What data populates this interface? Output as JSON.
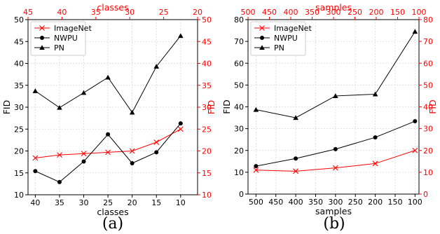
{
  "chart_data": [
    {
      "type": "line",
      "caption": "(a)",
      "xlabel": "classes",
      "ylabel": "FID",
      "top_xlabel": "classes",
      "right_ylabel": "FID",
      "xlim": [
        41.5,
        6.5
      ],
      "ylim": [
        10,
        50
      ],
      "xticks": [
        "40",
        "35",
        "30",
        "25",
        "20",
        "15",
        "10"
      ],
      "yticks": [
        "10",
        "15",
        "20",
        "25",
        "30",
        "35",
        "40",
        "45",
        "50"
      ],
      "top_xlim": [
        45,
        20
      ],
      "top_xticks": [
        "45",
        "40",
        "35",
        "30",
        "25",
        "20"
      ],
      "right_ylim": [
        10,
        50
      ],
      "right_yticks": [
        "10",
        "15",
        "20",
        "25",
        "30",
        "35",
        "40",
        "45",
        "50"
      ],
      "grid": true,
      "legend_position": "top-left",
      "series": [
        {
          "name": "ImageNet",
          "color": "#ff0000",
          "marker": "x",
          "x": [
            40,
            35,
            30,
            25,
            20,
            15,
            10
          ],
          "y": [
            18.4,
            19.1,
            19.4,
            19.7,
            20.0,
            22.0,
            25.0
          ]
        },
        {
          "name": "NWPU",
          "color": "#000000",
          "marker": "circle",
          "x": [
            40,
            35,
            30,
            25,
            20,
            15,
            10
          ],
          "y": [
            15.4,
            12.9,
            17.6,
            23.8,
            17.2,
            19.7,
            26.3
          ]
        },
        {
          "name": "PN",
          "color": "#000000",
          "marker": "triangle",
          "x": [
            40,
            35,
            30,
            25,
            20,
            15,
            10
          ],
          "y": [
            33.7,
            29.9,
            33.3,
            36.8,
            28.8,
            39.3,
            46.3
          ]
        }
      ]
    },
    {
      "type": "line",
      "caption": "(b)",
      "xlabel": "samples",
      "ylabel": "FID",
      "top_xlabel": "samples",
      "right_ylabel": "FID",
      "xlim": [
        520,
        90
      ],
      "ylim": [
        0,
        80
      ],
      "xticks": [
        "500",
        "450",
        "400",
        "350",
        "300",
        "250",
        "200",
        "150",
        "100"
      ],
      "yticks": [
        "0",
        "10",
        "20",
        "30",
        "40",
        "50",
        "60",
        "70",
        "80"
      ],
      "top_xlim": [
        500,
        100
      ],
      "top_xticks": [
        "500",
        "450",
        "400",
        "350",
        "300",
        "250",
        "200",
        "150",
        "100"
      ],
      "right_ylim": [
        0,
        80
      ],
      "right_yticks": [
        "0",
        "10",
        "20",
        "30",
        "40",
        "50",
        "60",
        "70",
        "80"
      ],
      "grid": true,
      "legend_position": "top-left",
      "series": [
        {
          "name": "ImageNet",
          "color": "#ff0000",
          "marker": "x",
          "x": [
            500,
            400,
            300,
            200,
            100
          ],
          "y": [
            11.0,
            10.5,
            12.0,
            14.0,
            20.0
          ]
        },
        {
          "name": "NWPU",
          "color": "#000000",
          "marker": "circle",
          "x": [
            500,
            400,
            300,
            200,
            100
          ],
          "y": [
            12.8,
            16.3,
            20.6,
            26.0,
            33.4
          ]
        },
        {
          "name": "PN",
          "color": "#000000",
          "marker": "triangle",
          "x": [
            500,
            400,
            300,
            200,
            100
          ],
          "y": [
            38.7,
            35.0,
            45.0,
            45.8,
            74.5
          ]
        }
      ]
    }
  ]
}
